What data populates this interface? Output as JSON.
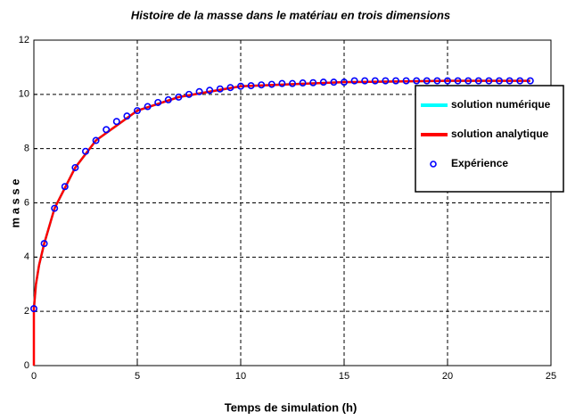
{
  "chart_data": {
    "type": "line",
    "title": "Histoire de la masse dans le matériau en trois dimensions",
    "xlabel": "Temps de simulation (h)",
    "ylabel": "m a s s e",
    "xlim": [
      0,
      25
    ],
    "xticks": [
      0,
      5,
      10,
      15,
      20,
      25
    ],
    "ylim": [
      0,
      12
    ],
    "yticks": [
      0,
      2,
      4,
      6,
      8,
      10,
      12
    ],
    "grid": true,
    "legend": "east",
    "series": [
      {
        "name": "solution numérique",
        "color": "#00ffff",
        "marker": "none",
        "x": [
          0,
          0.1,
          0.25,
          0.5,
          1,
          2,
          3,
          5,
          7,
          10,
          15,
          20,
          24
        ],
        "values": [
          2.1,
          3,
          3.7,
          4.5,
          5.8,
          7.3,
          8.3,
          9.4,
          9.9,
          10.3,
          10.45,
          10.5,
          10.5
        ]
      },
      {
        "name": "solution analytique",
        "color": "#ff0000",
        "marker": "none",
        "x": [
          0,
          0,
          0.1,
          0.25,
          0.5,
          1,
          2,
          3,
          5,
          7,
          10,
          15,
          20,
          24
        ],
        "values": [
          0,
          2.1,
          3,
          3.7,
          4.5,
          5.8,
          7.3,
          8.3,
          9.4,
          9.9,
          10.3,
          10.45,
          10.5,
          10.5
        ]
      },
      {
        "name": "Expérience",
        "color": "#0000ff",
        "marker": "o",
        "x": [
          0,
          0.5,
          1,
          1.5,
          2,
          2.5,
          3,
          3.5,
          4,
          4.5,
          5,
          5.5,
          6,
          6.5,
          7,
          7.5,
          8,
          8.5,
          9,
          9.5,
          10,
          10.5,
          11,
          11.5,
          12,
          12.5,
          13,
          13.5,
          14,
          14.5,
          15,
          15.5,
          16,
          16.5,
          17,
          17.5,
          18,
          18.5,
          19,
          19.5,
          20,
          20.5,
          21,
          21.5,
          22,
          22.5,
          23,
          23.5,
          24
        ],
        "values": [
          2.1,
          4.5,
          5.8,
          6.6,
          7.3,
          7.9,
          8.3,
          8.7,
          9.0,
          9.2,
          9.4,
          9.55,
          9.7,
          9.8,
          9.9,
          10.0,
          10.1,
          10.15,
          10.2,
          10.25,
          10.3,
          10.32,
          10.35,
          10.37,
          10.4,
          10.4,
          10.42,
          10.43,
          10.45,
          10.45,
          10.45,
          10.5,
          10.5,
          10.5,
          10.5,
          10.5,
          10.5,
          10.5,
          10.5,
          10.5,
          10.5,
          10.5,
          10.5,
          10.5,
          10.5,
          10.5,
          10.5,
          10.5,
          10.5
        ]
      }
    ]
  }
}
